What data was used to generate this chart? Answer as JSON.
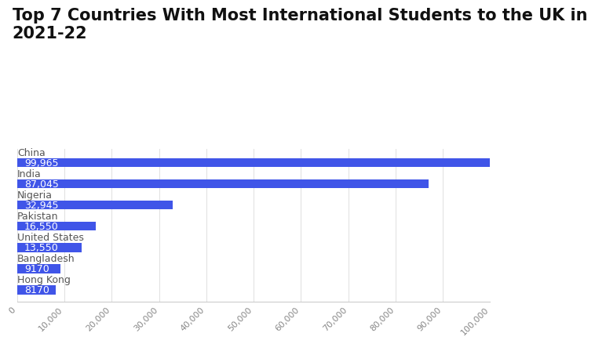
{
  "title": "Top 7 Countries With Most International Students to the UK in\n2021-22",
  "categories": [
    "China",
    "India",
    "Nigeria",
    "Pakistan",
    "United States",
    "Bangladesh",
    "Hong Kong"
  ],
  "values": [
    99965,
    87045,
    32945,
    16550,
    13550,
    9170,
    8170
  ],
  "bar_color": "#4055e8",
  "value_labels": [
    "99,965",
    "87,045",
    "32,945",
    "16,550",
    "13,550",
    "9170",
    "8170"
  ],
  "xlim": [
    0,
    100000
  ],
  "xticks": [
    0,
    10000,
    20000,
    30000,
    40000,
    50000,
    60000,
    70000,
    80000,
    90000,
    100000
  ],
  "background_color": "#ffffff",
  "bar_height": 0.42,
  "title_fontsize": 15,
  "label_fontsize": 9,
  "value_fontsize": 9,
  "tick_fontsize": 8
}
